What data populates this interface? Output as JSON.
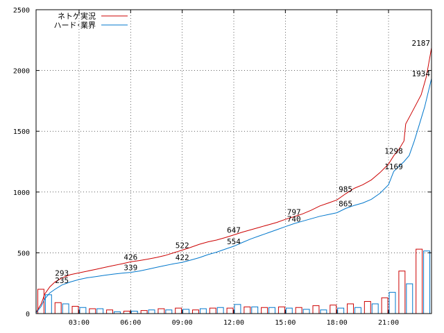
{
  "chart_data": {
    "type": "line",
    "title": "",
    "xlabel": "",
    "ylabel": "",
    "ylim": [
      0,
      2500
    ],
    "xlim_hours": [
      0.5,
      23.5
    ],
    "grid": true,
    "legend_position": "top-left",
    "y_ticks": [
      {
        "value": 0,
        "label": "0"
      },
      {
        "value": 500,
        "label": "500"
      },
      {
        "value": 1000,
        "label": "1000"
      },
      {
        "value": 1500,
        "label": "1500"
      },
      {
        "value": 2000,
        "label": "2000"
      },
      {
        "value": 2500,
        "label": "2500"
      }
    ],
    "x_ticks": [
      {
        "hour": 3,
        "label": "03:00"
      },
      {
        "hour": 6,
        "label": "06:00"
      },
      {
        "hour": 9,
        "label": "09:00"
      },
      {
        "hour": 12,
        "label": "12:00"
      },
      {
        "hour": 15,
        "label": "15:00"
      },
      {
        "hour": 18,
        "label": "18:00"
      },
      {
        "hour": 21,
        "label": "21:00"
      }
    ],
    "series": [
      {
        "name": "ネトゲ実況",
        "color": "#cc0000",
        "x": [
          0.5,
          0.8,
          1.0,
          1.3,
          1.6,
          2.0,
          2.5,
          3.0,
          3.5,
          4.0,
          4.5,
          5.0,
          5.5,
          6.0,
          6.5,
          7.0,
          7.5,
          8.0,
          8.5,
          9.0,
          9.5,
          10.0,
          10.5,
          11.0,
          11.5,
          12.0,
          12.5,
          13.0,
          13.5,
          14.0,
          14.5,
          15.0,
          15.5,
          16.0,
          16.5,
          17.0,
          17.5,
          18.0,
          18.5,
          19.0,
          19.5,
          20.0,
          20.5,
          21.0,
          21.3,
          21.6,
          21.9,
          22.0,
          22.3,
          22.6,
          22.9,
          23.2,
          23.5
        ],
        "values": [
          10,
          80,
          160,
          220,
          260,
          293,
          320,
          335,
          350,
          365,
          380,
          395,
          410,
          426,
          436,
          448,
          462,
          478,
          500,
          522,
          545,
          570,
          590,
          605,
          625,
          647,
          670,
          690,
          710,
          730,
          750,
          775,
          797,
          820,
          850,
          885,
          910,
          935,
          985,
          1030,
          1060,
          1100,
          1160,
          1230,
          1298,
          1350,
          1420,
          1560,
          1640,
          1720,
          1800,
          1950,
          2187
        ]
      },
      {
        "name": "ハード･業界",
        "color": "#0077cc",
        "x": [
          0.5,
          0.8,
          1.0,
          1.3,
          1.6,
          2.0,
          2.5,
          3.0,
          3.5,
          4.0,
          4.5,
          5.0,
          5.5,
          6.0,
          6.5,
          7.0,
          7.5,
          8.0,
          8.5,
          9.0,
          9.5,
          10.0,
          10.5,
          11.0,
          11.5,
          12.0,
          12.5,
          13.0,
          13.5,
          14.0,
          14.5,
          15.0,
          15.5,
          16.0,
          16.5,
          17.0,
          17.5,
          18.0,
          18.5,
          19.0,
          19.5,
          20.0,
          20.5,
          21.0,
          21.3,
          21.6,
          21.9,
          22.2,
          22.5,
          22.8,
          23.1,
          23.5
        ],
        "values": [
          5,
          60,
          120,
          170,
          200,
          235,
          260,
          280,
          295,
          305,
          315,
          325,
          332,
          339,
          350,
          365,
          380,
          395,
          410,
          422,
          440,
          460,
          485,
          505,
          530,
          554,
          585,
          615,
          640,
          665,
          690,
          715,
          740,
          760,
          780,
          800,
          815,
          830,
          865,
          890,
          910,
          940,
          990,
          1060,
          1169,
          1210,
          1250,
          1300,
          1420,
          1560,
          1700,
          1934
        ]
      }
    ],
    "point_labels": [
      {
        "series": 0,
        "x": 2.0,
        "value": 293,
        "text": "293"
      },
      {
        "series": 0,
        "x": 6.0,
        "value": 426,
        "text": "426"
      },
      {
        "series": 0,
        "x": 9.0,
        "value": 522,
        "text": "522"
      },
      {
        "series": 0,
        "x": 12.0,
        "value": 647,
        "text": "647"
      },
      {
        "series": 0,
        "x": 15.5,
        "value": 797,
        "text": "797"
      },
      {
        "series": 0,
        "x": 18.5,
        "value": 985,
        "text": "985"
      },
      {
        "series": 0,
        "x": 21.3,
        "value": 1298,
        "text": "1298"
      },
      {
        "series": 0,
        "x": 23.5,
        "value": 2187,
        "text": "2187"
      },
      {
        "series": 1,
        "x": 2.0,
        "value": 235,
        "text": "235"
      },
      {
        "series": 1,
        "x": 6.0,
        "value": 339,
        "text": "339"
      },
      {
        "series": 1,
        "x": 9.0,
        "value": 422,
        "text": "422"
      },
      {
        "series": 1,
        "x": 12.0,
        "value": 554,
        "text": "554"
      },
      {
        "series": 1,
        "x": 15.5,
        "value": 740,
        "text": "740"
      },
      {
        "series": 1,
        "x": 18.5,
        "value": 865,
        "text": "865"
      },
      {
        "series": 1,
        "x": 21.3,
        "value": 1169,
        "text": "1169"
      },
      {
        "series": 1,
        "x": 23.5,
        "value": 1934,
        "text": "1934"
      }
    ],
    "hourly_bars": {
      "hours": [
        1,
        2,
        3,
        4,
        5,
        6,
        7,
        8,
        9,
        10,
        11,
        12,
        13,
        14,
        15,
        16,
        17,
        18,
        19,
        20,
        21,
        22,
        23
      ],
      "series": [
        {
          "name": "ネトゲ実況",
          "color": "#cc0000",
          "values": [
            200,
            90,
            60,
            40,
            30,
            20,
            25,
            40,
            45,
            30,
            45,
            45,
            55,
            50,
            55,
            50,
            65,
            70,
            80,
            100,
            130,
            350,
            530
          ]
        },
        {
          "name": "ハード･業界",
          "color": "#0077cc",
          "values": [
            155,
            80,
            50,
            40,
            15,
            20,
            30,
            30,
            35,
            40,
            50,
            75,
            55,
            50,
            45,
            35,
            30,
            45,
            50,
            80,
            175,
            245,
            515
          ]
        }
      ]
    }
  }
}
